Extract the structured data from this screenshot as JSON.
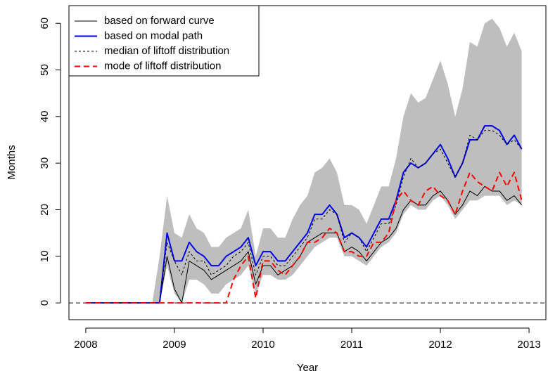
{
  "chart_data": {
    "type": "line",
    "x_label": "Year",
    "y_label": "Months",
    "x": [
      2008,
      2008.083,
      2008.167,
      2008.25,
      2008.333,
      2008.417,
      2008.5,
      2008.583,
      2008.667,
      2008.75,
      2008.833,
      2008.917,
      2009,
      2009.083,
      2009.167,
      2009.25,
      2009.333,
      2009.417,
      2009.5,
      2009.583,
      2009.667,
      2009.75,
      2009.833,
      2009.917,
      2010,
      2010.083,
      2010.167,
      2010.25,
      2010.333,
      2010.417,
      2010.5,
      2010.583,
      2010.667,
      2010.75,
      2010.833,
      2010.917,
      2011,
      2011.083,
      2011.167,
      2011.25,
      2011.333,
      2011.417,
      2011.5,
      2011.583,
      2011.667,
      2011.75,
      2011.833,
      2011.917,
      2012,
      2012.083,
      2012.167,
      2012.25,
      2012.333,
      2012.417,
      2012.5,
      2012.583,
      2012.667,
      2012.75,
      2012.833,
      2012.917
    ],
    "band": {
      "color": "#bebebe",
      "lower": [
        0,
        0,
        0,
        0,
        0,
        0,
        0,
        0,
        0,
        0,
        0,
        8,
        2,
        0,
        5,
        5,
        4,
        2,
        2,
        4,
        5,
        6,
        8,
        2,
        6,
        6,
        5,
        5,
        6,
        8,
        10,
        12,
        13,
        14,
        14,
        10,
        10,
        9,
        8,
        10,
        12,
        13,
        15,
        19,
        21,
        20,
        20,
        22,
        23,
        21,
        18,
        20,
        22,
        22,
        23,
        23,
        23,
        21,
        22,
        21
      ],
      "upper": [
        0,
        0,
        0,
        0,
        0,
        0,
        0,
        0,
        0,
        0,
        10,
        23,
        15,
        14,
        19,
        16,
        15,
        12,
        12,
        14,
        15,
        16,
        20,
        10,
        16,
        16,
        14,
        14,
        18,
        21,
        23,
        28,
        29,
        31,
        28,
        21,
        21,
        20,
        17,
        21,
        25,
        25,
        31,
        40,
        45,
        43,
        44,
        48,
        52,
        47,
        40,
        46,
        56,
        55,
        60,
        61,
        59,
        55,
        58,
        54
      ]
    },
    "series": [
      {
        "name": "based on forward curve",
        "color": "#000000",
        "dash": "solid",
        "width": 1,
        "values": [
          0,
          0,
          0,
          0,
          0,
          0,
          0,
          0,
          0,
          0,
          0,
          10,
          3,
          0,
          9,
          8,
          7,
          5,
          6,
          7,
          8,
          9,
          11,
          4,
          8,
          8,
          6,
          7,
          8,
          10,
          13,
          14,
          15,
          15,
          15,
          11,
          12,
          11,
          9,
          11,
          13,
          14,
          16,
          20,
          22,
          21,
          21,
          23,
          24,
          22,
          19,
          21,
          24,
          23,
          25,
          24,
          24,
          22,
          23,
          21
        ]
      },
      {
        "name": "based on modal path",
        "color": "#0000ee",
        "dash": "solid",
        "width": 2,
        "values": [
          0,
          0,
          0,
          0,
          0,
          0,
          0,
          0,
          0,
          0,
          0,
          15,
          9,
          9,
          13,
          11,
          10,
          8,
          8,
          10,
          11,
          12,
          14,
          8,
          11,
          11,
          9,
          9,
          11,
          13,
          15,
          19,
          19,
          21,
          19,
          14,
          15,
          14,
          12,
          15,
          18,
          18,
          22,
          28,
          30,
          29,
          30,
          32,
          34,
          31,
          27,
          30,
          35,
          35,
          38,
          38,
          37,
          34,
          36,
          33
        ]
      },
      {
        "name": "median of liftoff distribution",
        "color": "#000000",
        "dash": "dotted",
        "width": 1,
        "values": [
          0,
          0,
          0,
          0,
          0,
          0,
          0,
          0,
          0,
          0,
          0,
          13,
          9,
          6,
          11,
          9,
          9,
          6,
          7,
          8,
          10,
          11,
          13,
          6,
          10,
          10,
          8,
          8,
          10,
          12,
          14,
          18,
          18,
          20,
          19,
          13,
          15,
          14,
          11,
          14,
          17,
          17,
          21,
          27,
          31,
          29,
          30,
          32,
          33,
          30,
          27,
          30,
          36,
          35,
          37,
          37,
          36,
          34,
          35,
          33
        ]
      },
      {
        "name": "mode of liftoff distribution",
        "color": "#ff0000",
        "dash": "dashed",
        "width": 2,
        "values": [
          0,
          0,
          0,
          0,
          0,
          0,
          0,
          0,
          0,
          0,
          0,
          0,
          0,
          0,
          0,
          0,
          0,
          0,
          0,
          0,
          5,
          8,
          10,
          1,
          9,
          9,
          7,
          6,
          8,
          10,
          13,
          13,
          14,
          16,
          15,
          11,
          11,
          10,
          10,
          13,
          13,
          15,
          22,
          24,
          22,
          21,
          24,
          25,
          23,
          22,
          19,
          24,
          28,
          26,
          25,
          24,
          28,
          25,
          28,
          22
        ]
      }
    ],
    "reference_line": 0,
    "xlim": [
      2007.81,
      2013.19
    ],
    "xticks": [
      2008,
      2009,
      2010,
      2011,
      2012,
      2013
    ],
    "ylim": [
      -3.6,
      63.8
    ],
    "yticks": [
      0,
      10,
      20,
      30,
      40,
      50,
      60
    ],
    "legend": "top-left"
  }
}
